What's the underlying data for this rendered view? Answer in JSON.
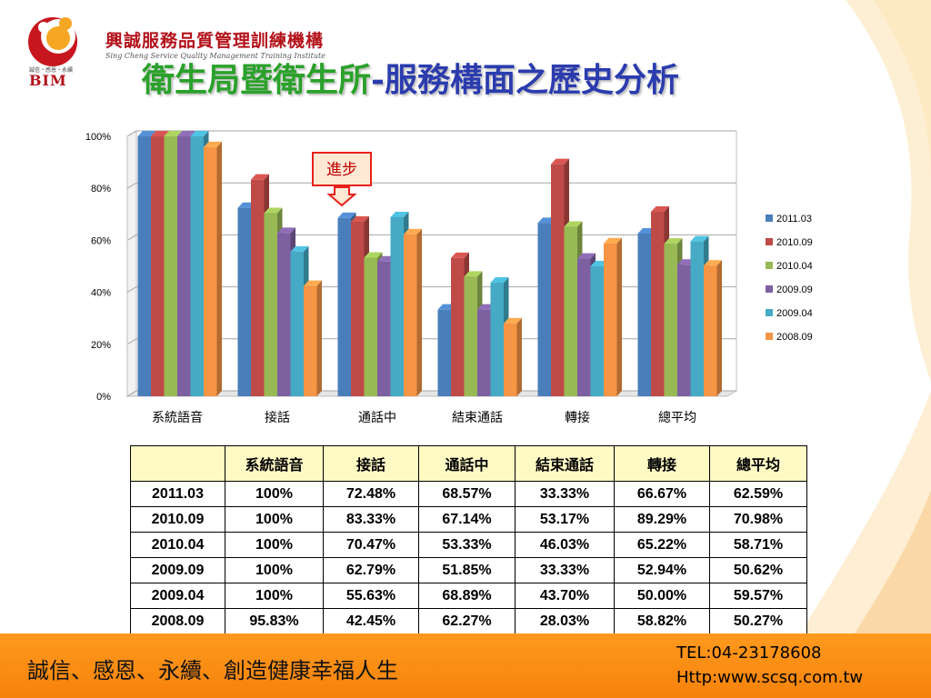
{
  "brand": {
    "name": "興誠服務品質管理訓練機構",
    "subtitle": "Sing Cheng Service Quality Management Training Institute",
    "motto": "誠信・感恩・永續",
    "logo_text": "BIM"
  },
  "title": {
    "part1": "衛生局暨衛生所",
    "part2": "-服務構面之歷史分析"
  },
  "callout": "進步",
  "colors": {
    "2011.03": "#4a7ebb",
    "2010.09": "#be4b48",
    "2010.04": "#98b954",
    "2009.09": "#7d60a0",
    "2009.04": "#46aac5",
    "2008.09": "#f69545"
  },
  "chart_data": {
    "type": "bar",
    "categories": [
      "系統語音",
      "接話",
      "通話中",
      "結束通話",
      "轉接",
      "總平均"
    ],
    "series": [
      {
        "name": "2011.03",
        "values": [
          100,
          72.48,
          68.57,
          33.33,
          66.67,
          62.59
        ]
      },
      {
        "name": "2010.09",
        "values": [
          100,
          83.33,
          67.14,
          53.17,
          89.29,
          70.98
        ]
      },
      {
        "name": "2010.04",
        "values": [
          100,
          70.47,
          53.33,
          46.03,
          65.22,
          58.71
        ]
      },
      {
        "name": "2009.09",
        "values": [
          100,
          62.79,
          51.85,
          33.33,
          52.94,
          50.62
        ]
      },
      {
        "name": "2009.04",
        "values": [
          100,
          55.63,
          68.89,
          43.7,
          50.0,
          59.57
        ]
      },
      {
        "name": "2008.09",
        "values": [
          95.83,
          42.45,
          62.27,
          28.03,
          58.82,
          50.27
        ]
      }
    ],
    "y_ticks": [
      "0%",
      "20%",
      "40%",
      "60%",
      "80%",
      "100%"
    ],
    "ylim": [
      0,
      100
    ],
    "grid": true,
    "legend_position": "right",
    "three_d": true
  },
  "table": {
    "headers": [
      "",
      "系統語音",
      "接話",
      "通話中",
      "結束通話",
      "轉接",
      "總平均"
    ],
    "rows": [
      [
        "2011.03",
        "100%",
        "72.48%",
        "68.57%",
        "33.33%",
        "66.67%",
        "62.59%"
      ],
      [
        "2010.09",
        "100%",
        "83.33%",
        "67.14%",
        "53.17%",
        "89.29%",
        "70.98%"
      ],
      [
        "2010.04",
        "100%",
        "70.47%",
        "53.33%",
        "46.03%",
        "65.22%",
        "58.71%"
      ],
      [
        "2009.09",
        "100%",
        "62.79%",
        "51.85%",
        "33.33%",
        "52.94%",
        "50.62%"
      ],
      [
        "2009.04",
        "100%",
        "55.63%",
        "68.89%",
        "43.70%",
        "50.00%",
        "59.57%"
      ],
      [
        "2008.09",
        "95.83%",
        "42.45%",
        "62.27%",
        "28.03%",
        "58.82%",
        "50.27%"
      ]
    ]
  },
  "footer": {
    "slogan": "誠信、感恩、永續、創造健康幸福人生",
    "tel": "TEL:04-23178608",
    "url": "Http:www.scsq.com.tw"
  }
}
